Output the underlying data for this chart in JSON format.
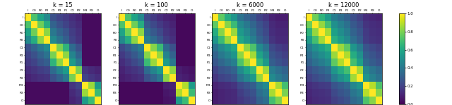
{
  "labels": [
    "I",
    "C0",
    "R0",
    "P0",
    "C1",
    "R1",
    "P1",
    "C2",
    "R2",
    "M3",
    "R3",
    "O"
  ],
  "titles": [
    "k = 15",
    "k = 100",
    "k = 6000",
    "k = 12000"
  ],
  "cmap": "viridis",
  "vmin": 0.0,
  "vmax": 1.0,
  "matrices": {
    "k15": [
      [
        1.0,
        0.72,
        0.58,
        0.47,
        0.25,
        0.2,
        0.17,
        0.13,
        0.1,
        0.03,
        0.03,
        0.03
      ],
      [
        0.72,
        1.0,
        0.78,
        0.62,
        0.32,
        0.25,
        0.2,
        0.15,
        0.12,
        0.03,
        0.03,
        0.03
      ],
      [
        0.58,
        0.78,
        1.0,
        0.83,
        0.4,
        0.32,
        0.26,
        0.18,
        0.14,
        0.03,
        0.03,
        0.03
      ],
      [
        0.47,
        0.62,
        0.83,
        1.0,
        0.48,
        0.38,
        0.3,
        0.2,
        0.15,
        0.03,
        0.03,
        0.03
      ],
      [
        0.25,
        0.32,
        0.4,
        0.48,
        1.0,
        0.8,
        0.65,
        0.35,
        0.25,
        0.03,
        0.03,
        0.03
      ],
      [
        0.2,
        0.25,
        0.32,
        0.38,
        0.8,
        1.0,
        0.83,
        0.45,
        0.32,
        0.03,
        0.03,
        0.03
      ],
      [
        0.17,
        0.2,
        0.26,
        0.3,
        0.65,
        0.83,
        1.0,
        0.55,
        0.4,
        0.03,
        0.03,
        0.03
      ],
      [
        0.13,
        0.15,
        0.18,
        0.2,
        0.35,
        0.45,
        0.55,
        1.0,
        0.8,
        0.15,
        0.12,
        0.1
      ],
      [
        0.1,
        0.12,
        0.14,
        0.15,
        0.25,
        0.32,
        0.4,
        0.8,
        1.0,
        0.2,
        0.16,
        0.13
      ],
      [
        0.03,
        0.03,
        0.03,
        0.03,
        0.03,
        0.03,
        0.03,
        0.15,
        0.2,
        1.0,
        0.85,
        0.55
      ],
      [
        0.03,
        0.03,
        0.03,
        0.03,
        0.03,
        0.03,
        0.03,
        0.12,
        0.16,
        0.85,
        1.0,
        0.68
      ],
      [
        0.03,
        0.03,
        0.03,
        0.03,
        0.03,
        0.03,
        0.03,
        0.1,
        0.13,
        0.55,
        0.68,
        1.0
      ]
    ],
    "k100": [
      [
        1.0,
        0.72,
        0.58,
        0.47,
        0.22,
        0.17,
        0.13,
        0.1,
        0.08,
        0.02,
        0.02,
        0.02
      ],
      [
        0.72,
        1.0,
        0.78,
        0.62,
        0.28,
        0.22,
        0.17,
        0.13,
        0.1,
        0.02,
        0.02,
        0.02
      ],
      [
        0.58,
        0.78,
        1.0,
        0.83,
        0.35,
        0.28,
        0.22,
        0.15,
        0.12,
        0.02,
        0.02,
        0.02
      ],
      [
        0.47,
        0.62,
        0.83,
        1.0,
        0.42,
        0.35,
        0.27,
        0.18,
        0.14,
        0.02,
        0.02,
        0.02
      ],
      [
        0.22,
        0.28,
        0.35,
        0.42,
        1.0,
        0.82,
        0.68,
        0.35,
        0.25,
        0.02,
        0.02,
        0.02
      ],
      [
        0.17,
        0.22,
        0.28,
        0.35,
        0.82,
        1.0,
        0.85,
        0.45,
        0.32,
        0.02,
        0.02,
        0.02
      ],
      [
        0.13,
        0.17,
        0.22,
        0.27,
        0.68,
        0.85,
        1.0,
        0.55,
        0.4,
        0.02,
        0.02,
        0.02
      ],
      [
        0.1,
        0.13,
        0.15,
        0.18,
        0.35,
        0.45,
        0.55,
        1.0,
        0.83,
        0.08,
        0.06,
        0.05
      ],
      [
        0.08,
        0.1,
        0.12,
        0.14,
        0.25,
        0.32,
        0.4,
        0.83,
        1.0,
        0.1,
        0.08,
        0.06
      ],
      [
        0.02,
        0.02,
        0.02,
        0.02,
        0.02,
        0.02,
        0.02,
        0.08,
        0.1,
        1.0,
        0.88,
        0.55
      ],
      [
        0.02,
        0.02,
        0.02,
        0.02,
        0.02,
        0.02,
        0.02,
        0.06,
        0.08,
        0.88,
        1.0,
        0.68
      ],
      [
        0.02,
        0.02,
        0.02,
        0.02,
        0.02,
        0.02,
        0.02,
        0.05,
        0.06,
        0.55,
        0.68,
        1.0
      ]
    ],
    "k6000": [
      [
        1.0,
        0.75,
        0.62,
        0.52,
        0.38,
        0.32,
        0.27,
        0.2,
        0.16,
        0.1,
        0.08,
        0.08
      ],
      [
        0.75,
        1.0,
        0.82,
        0.68,
        0.47,
        0.4,
        0.33,
        0.25,
        0.2,
        0.12,
        0.1,
        0.1
      ],
      [
        0.62,
        0.82,
        1.0,
        0.85,
        0.54,
        0.46,
        0.38,
        0.28,
        0.22,
        0.13,
        0.11,
        0.11
      ],
      [
        0.52,
        0.68,
        0.85,
        1.0,
        0.6,
        0.52,
        0.43,
        0.32,
        0.25,
        0.15,
        0.12,
        0.12
      ],
      [
        0.38,
        0.47,
        0.54,
        0.6,
        1.0,
        0.83,
        0.72,
        0.48,
        0.38,
        0.22,
        0.18,
        0.16
      ],
      [
        0.32,
        0.4,
        0.46,
        0.52,
        0.83,
        1.0,
        0.86,
        0.58,
        0.46,
        0.26,
        0.22,
        0.19
      ],
      [
        0.27,
        0.33,
        0.38,
        0.43,
        0.72,
        0.86,
        1.0,
        0.67,
        0.54,
        0.3,
        0.25,
        0.22
      ],
      [
        0.2,
        0.25,
        0.28,
        0.32,
        0.48,
        0.58,
        0.67,
        1.0,
        0.84,
        0.42,
        0.36,
        0.32
      ],
      [
        0.16,
        0.2,
        0.22,
        0.25,
        0.38,
        0.46,
        0.54,
        0.84,
        1.0,
        0.48,
        0.41,
        0.36
      ],
      [
        0.1,
        0.12,
        0.13,
        0.15,
        0.22,
        0.26,
        0.3,
        0.42,
        0.48,
        1.0,
        0.87,
        0.7
      ],
      [
        0.08,
        0.1,
        0.11,
        0.12,
        0.18,
        0.22,
        0.25,
        0.36,
        0.41,
        0.87,
        1.0,
        0.8
      ],
      [
        0.08,
        0.1,
        0.11,
        0.12,
        0.16,
        0.19,
        0.22,
        0.32,
        0.36,
        0.7,
        0.8,
        1.0
      ]
    ],
    "k12000": [
      [
        1.0,
        0.78,
        0.65,
        0.55,
        0.42,
        0.36,
        0.31,
        0.24,
        0.19,
        0.13,
        0.11,
        0.1
      ],
      [
        0.78,
        1.0,
        0.84,
        0.7,
        0.5,
        0.43,
        0.37,
        0.28,
        0.23,
        0.15,
        0.13,
        0.12
      ],
      [
        0.65,
        0.84,
        1.0,
        0.86,
        0.57,
        0.49,
        0.42,
        0.32,
        0.26,
        0.17,
        0.14,
        0.13
      ],
      [
        0.55,
        0.7,
        0.86,
        1.0,
        0.63,
        0.55,
        0.47,
        0.36,
        0.29,
        0.18,
        0.15,
        0.14
      ],
      [
        0.42,
        0.5,
        0.57,
        0.63,
        1.0,
        0.85,
        0.75,
        0.52,
        0.42,
        0.26,
        0.22,
        0.19
      ],
      [
        0.36,
        0.43,
        0.49,
        0.55,
        0.85,
        1.0,
        0.88,
        0.62,
        0.5,
        0.3,
        0.26,
        0.22
      ],
      [
        0.31,
        0.37,
        0.42,
        0.47,
        0.75,
        0.88,
        1.0,
        0.7,
        0.57,
        0.34,
        0.29,
        0.25
      ],
      [
        0.24,
        0.28,
        0.32,
        0.36,
        0.52,
        0.62,
        0.7,
        1.0,
        0.86,
        0.46,
        0.39,
        0.34
      ],
      [
        0.19,
        0.23,
        0.26,
        0.29,
        0.42,
        0.5,
        0.57,
        0.86,
        1.0,
        0.52,
        0.44,
        0.38
      ],
      [
        0.13,
        0.15,
        0.17,
        0.18,
        0.26,
        0.3,
        0.34,
        0.46,
        0.52,
        1.0,
        0.89,
        0.72
      ],
      [
        0.11,
        0.13,
        0.14,
        0.15,
        0.22,
        0.26,
        0.29,
        0.39,
        0.44,
        0.89,
        1.0,
        0.82
      ],
      [
        0.1,
        0.12,
        0.13,
        0.14,
        0.19,
        0.22,
        0.25,
        0.34,
        0.38,
        0.72,
        0.82,
        1.0
      ]
    ]
  }
}
